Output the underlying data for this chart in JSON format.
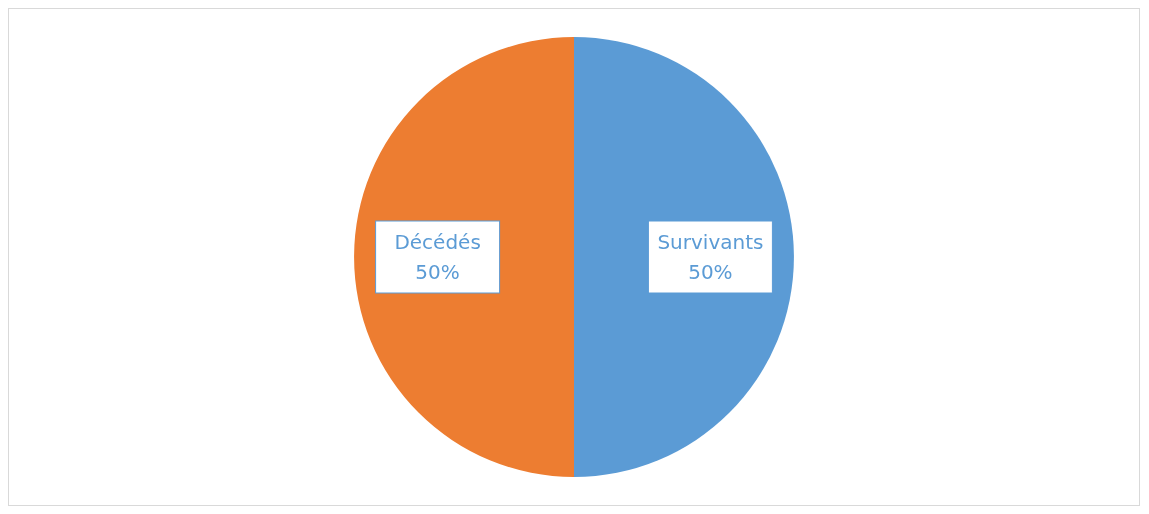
{
  "chart_data": {
    "type": "pie",
    "categories": [
      "Survivants",
      "Décédés"
    ],
    "values": [
      50,
      50
    ],
    "colors": [
      "#5b9bd5",
      "#ed7d31"
    ],
    "value_labels": [
      "50%",
      "50%"
    ],
    "legend": false
  }
}
